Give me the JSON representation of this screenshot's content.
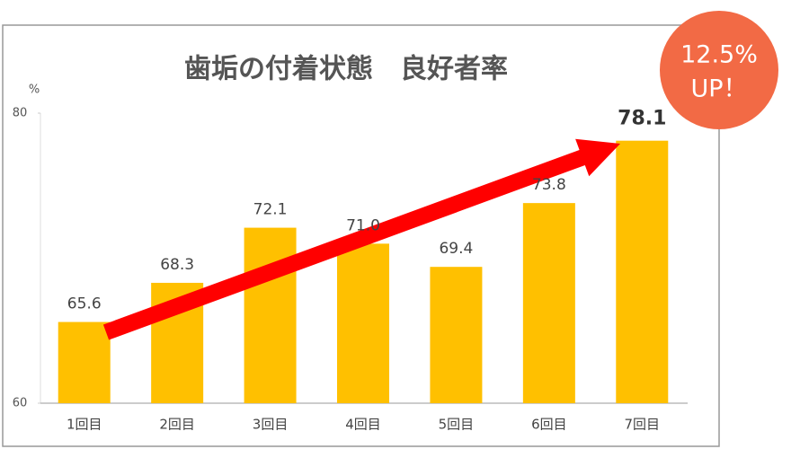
{
  "chart_data": {
    "type": "bar",
    "title": "歯垢の付着状態　良好者率",
    "y_label": "%",
    "categories": [
      "1回目",
      "2回目",
      "3回目",
      "4回目",
      "5回目",
      "6回目",
      "7回目"
    ],
    "values": [
      65.6,
      68.3,
      72.1,
      71.0,
      69.4,
      73.8,
      78.1
    ],
    "value_labels": [
      "65.6",
      "68.3",
      "72.1",
      "71.0",
      "69.4",
      "73.8",
      "78.1"
    ],
    "color": "#ffc000",
    "ylim": [
      60,
      80
    ],
    "yticks": [
      60,
      80
    ],
    "grid": false,
    "annotations": [
      "12.5%",
      "UP！"
    ]
  }
}
